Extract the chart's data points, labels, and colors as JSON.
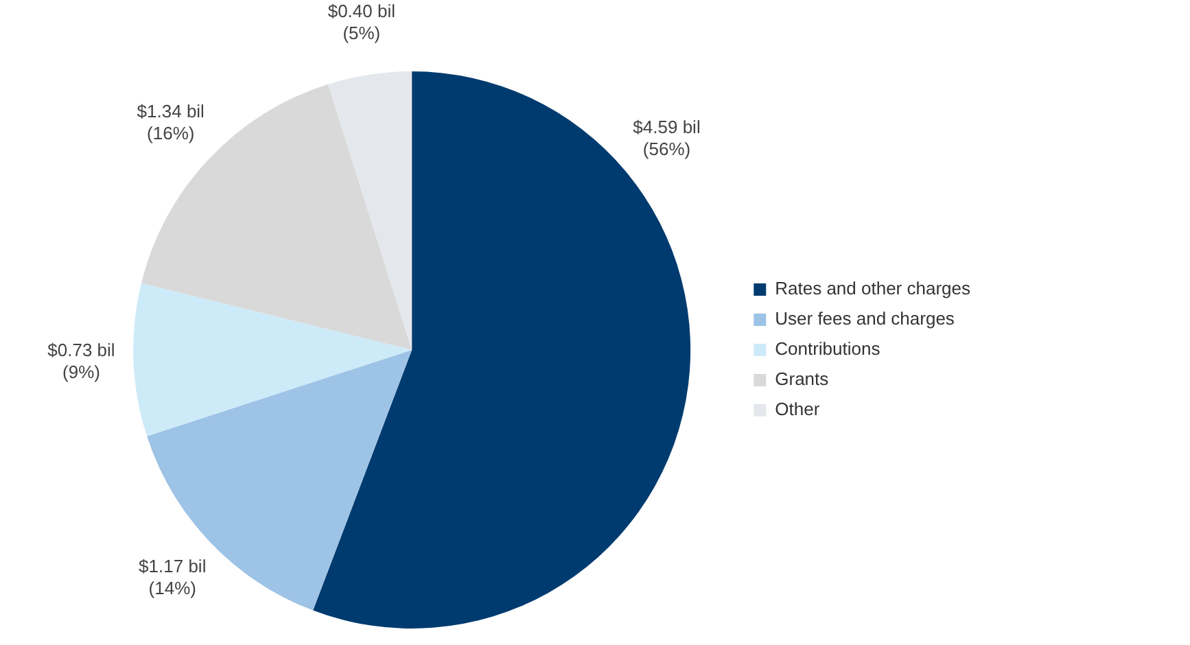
{
  "chart_data": {
    "type": "pie",
    "categories": [
      "Rates and other charges",
      "User fees and charges",
      "Contributions",
      "Grants",
      "Other"
    ],
    "values": [
      4.59,
      1.17,
      0.73,
      1.34,
      0.4
    ],
    "colors": [
      "#003b6f",
      "#9dc3e6",
      "#cdeaf8",
      "#d9d9d9",
      "#e4e7ec"
    ],
    "value_labels": [
      "$4.59 bil\n(56%)",
      "$1.17 bil\n(14%)",
      "$0.73 bil\n(9%)",
      "$1.34 bil\n(16%)",
      "$0.40 bil\n(5%)"
    ],
    "legend": "right"
  }
}
